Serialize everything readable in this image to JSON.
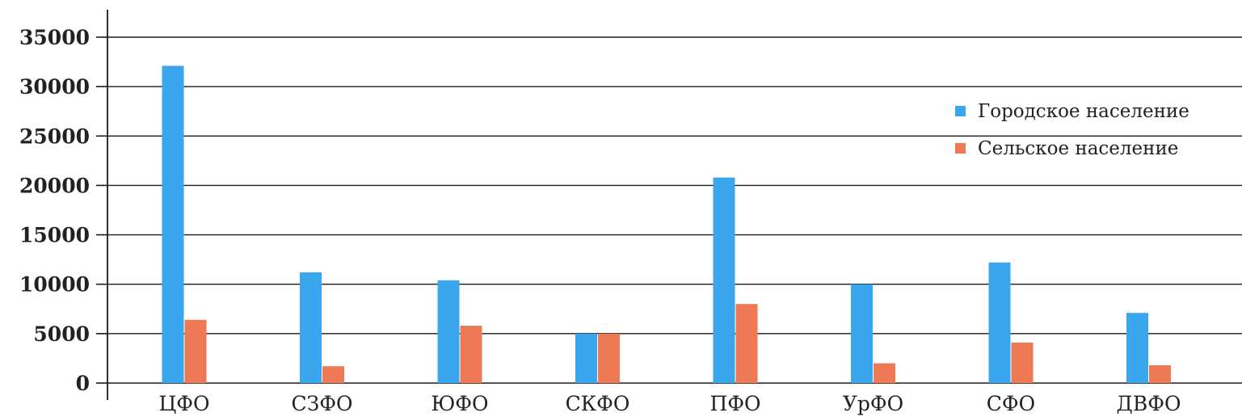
{
  "colors": {
    "urban": "#3aa6ee",
    "rural": "#ee7a55",
    "gridline": "#1a1a1a",
    "text": "#222222"
  },
  "legend": {
    "placement": "right",
    "items": [
      {
        "label": "Городское население",
        "color": "#3aa6ee"
      },
      {
        "label": "Сельское население",
        "color": "#ee7a55"
      }
    ]
  },
  "chart_data": {
    "type": "bar",
    "categories": [
      "ЦФО",
      "СЗФО",
      "ЮФО",
      "СКФО",
      "ПФО",
      "УрФО",
      "СФО",
      "ДВФО"
    ],
    "series": [
      {
        "name": "Городское население",
        "color": "#3aa6ee",
        "values": [
          32100,
          11200,
          10400,
          5000,
          20800,
          10000,
          12200,
          7100
        ]
      },
      {
        "name": "Сельское население",
        "color": "#ee7a55",
        "values": [
          6400,
          1700,
          5800,
          5000,
          8000,
          2000,
          4100,
          1800
        ]
      }
    ],
    "ylim": [
      0,
      35000
    ],
    "yticks": [
      "0",
      "5000",
      "10000",
      "15000",
      "20000",
      "25000",
      "30000",
      "35000"
    ],
    "grid": true,
    "title": "",
    "xlabel": "",
    "ylabel": ""
  }
}
